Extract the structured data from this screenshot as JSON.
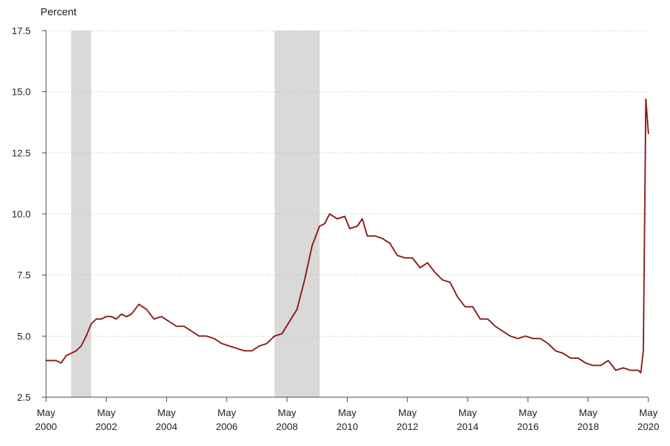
{
  "chart_data": {
    "type": "line",
    "title": "",
    "ylabel": "Percent",
    "xlabel": "",
    "ylim": [
      2.5,
      17.5
    ],
    "yticks": [
      "17.5",
      "15.0",
      "12.5",
      "10.0",
      "7.5",
      "5.0",
      "2.5"
    ],
    "ytick_values": [
      17.5,
      15.0,
      12.5,
      10.0,
      7.5,
      5.0,
      2.5
    ],
    "xlim": [
      "2000-05",
      "2020-05"
    ],
    "xticks": [
      {
        "month": "May",
        "year": "2000",
        "date": "2000-05"
      },
      {
        "month": "May",
        "year": "2002",
        "date": "2002-05"
      },
      {
        "month": "May",
        "year": "2004",
        "date": "2004-05"
      },
      {
        "month": "May",
        "year": "2006",
        "date": "2006-05"
      },
      {
        "month": "May",
        "year": "2008",
        "date": "2008-05"
      },
      {
        "month": "May",
        "year": "2010",
        "date": "2010-05"
      },
      {
        "month": "May",
        "year": "2012",
        "date": "2012-05"
      },
      {
        "month": "May",
        "year": "2014",
        "date": "2014-05"
      },
      {
        "month": "May",
        "year": "2016",
        "date": "2016-05"
      },
      {
        "month": "May",
        "year": "2018",
        "date": "2018-05"
      },
      {
        "month": "May",
        "year": "2020",
        "date": "2020-05"
      }
    ],
    "grid": "horizontal dotted",
    "recessions": [
      {
        "start": "2001-03",
        "end": "2001-11"
      },
      {
        "start": "2007-12",
        "end": "2009-06"
      }
    ],
    "series": [
      {
        "color": "#8b1a1a",
        "points": [
          [
            "2000-05",
            4.0
          ],
          [
            "2000-07",
            4.0
          ],
          [
            "2000-09",
            4.0
          ],
          [
            "2000-11",
            3.9
          ],
          [
            "2001-01",
            4.2
          ],
          [
            "2001-03",
            4.3
          ],
          [
            "2001-05",
            4.4
          ],
          [
            "2001-07",
            4.6
          ],
          [
            "2001-09",
            5.0
          ],
          [
            "2001-11",
            5.5
          ],
          [
            "2002-01",
            5.7
          ],
          [
            "2002-03",
            5.7
          ],
          [
            "2002-05",
            5.8
          ],
          [
            "2002-07",
            5.8
          ],
          [
            "2002-09",
            5.7
          ],
          [
            "2002-11",
            5.9
          ],
          [
            "2003-01",
            5.8
          ],
          [
            "2003-03",
            5.9
          ],
          [
            "2003-06",
            6.3
          ],
          [
            "2003-09",
            6.1
          ],
          [
            "2003-12",
            5.7
          ],
          [
            "2004-03",
            5.8
          ],
          [
            "2004-06",
            5.6
          ],
          [
            "2004-09",
            5.4
          ],
          [
            "2004-12",
            5.4
          ],
          [
            "2005-03",
            5.2
          ],
          [
            "2005-06",
            5.0
          ],
          [
            "2005-09",
            5.0
          ],
          [
            "2005-12",
            4.9
          ],
          [
            "2006-03",
            4.7
          ],
          [
            "2006-06",
            4.6
          ],
          [
            "2006-09",
            4.5
          ],
          [
            "2006-12",
            4.4
          ],
          [
            "2007-03",
            4.4
          ],
          [
            "2007-06",
            4.6
          ],
          [
            "2007-09",
            4.7
          ],
          [
            "2007-12",
            5.0
          ],
          [
            "2008-03",
            5.1
          ],
          [
            "2008-06",
            5.6
          ],
          [
            "2008-09",
            6.1
          ],
          [
            "2008-12",
            7.3
          ],
          [
            "2009-03",
            8.7
          ],
          [
            "2009-06",
            9.5
          ],
          [
            "2009-08",
            9.6
          ],
          [
            "2009-10",
            10.0
          ],
          [
            "2010-01",
            9.8
          ],
          [
            "2010-04",
            9.9
          ],
          [
            "2010-06",
            9.4
          ],
          [
            "2010-09",
            9.5
          ],
          [
            "2010-11",
            9.8
          ],
          [
            "2011-01",
            9.1
          ],
          [
            "2011-04",
            9.1
          ],
          [
            "2011-07",
            9.0
          ],
          [
            "2011-10",
            8.8
          ],
          [
            "2012-01",
            8.3
          ],
          [
            "2012-04",
            8.2
          ],
          [
            "2012-07",
            8.2
          ],
          [
            "2012-10",
            7.8
          ],
          [
            "2013-01",
            8.0
          ],
          [
            "2013-04",
            7.6
          ],
          [
            "2013-07",
            7.3
          ],
          [
            "2013-10",
            7.2
          ],
          [
            "2014-01",
            6.6
          ],
          [
            "2014-04",
            6.2
          ],
          [
            "2014-07",
            6.2
          ],
          [
            "2014-10",
            5.7
          ],
          [
            "2015-01",
            5.7
          ],
          [
            "2015-04",
            5.4
          ],
          [
            "2015-07",
            5.2
          ],
          [
            "2015-10",
            5.0
          ],
          [
            "2016-01",
            4.9
          ],
          [
            "2016-04",
            5.0
          ],
          [
            "2016-07",
            4.9
          ],
          [
            "2016-10",
            4.9
          ],
          [
            "2017-01",
            4.7
          ],
          [
            "2017-04",
            4.4
          ],
          [
            "2017-07",
            4.3
          ],
          [
            "2017-10",
            4.1
          ],
          [
            "2018-01",
            4.1
          ],
          [
            "2018-04",
            3.9
          ],
          [
            "2018-07",
            3.8
          ],
          [
            "2018-10",
            3.8
          ],
          [
            "2019-01",
            4.0
          ],
          [
            "2019-04",
            3.6
          ],
          [
            "2019-07",
            3.7
          ],
          [
            "2019-10",
            3.6
          ],
          [
            "2020-01",
            3.6
          ],
          [
            "2020-02",
            3.5
          ],
          [
            "2020-03",
            4.4
          ],
          [
            "2020-04",
            14.7
          ],
          [
            "2020-05",
            13.3
          ]
        ]
      }
    ]
  }
}
